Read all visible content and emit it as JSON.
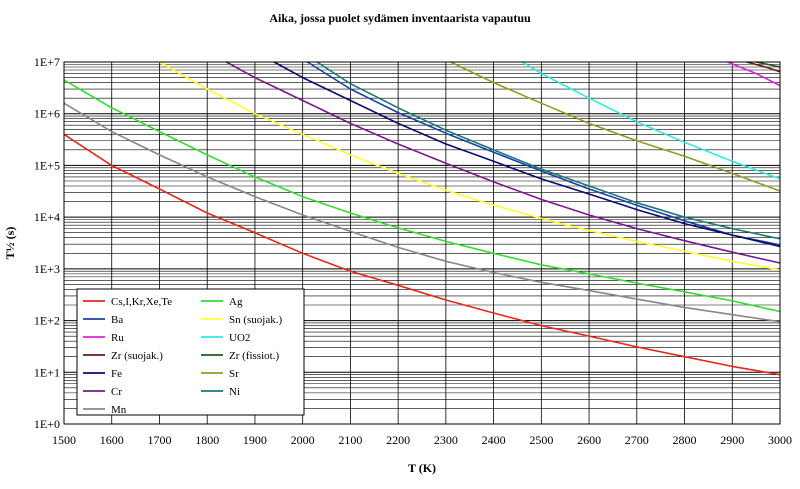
{
  "chart_data": {
    "type": "line",
    "title": "Aika, jossa puolet sydämen inventaarista vapautuu",
    "xlabel": "T (K)",
    "ylabel": "T½ (s)",
    "xlim": [
      1500,
      3000
    ],
    "ylim_log10": [
      0,
      7
    ],
    "y_scale": "log",
    "grid": true,
    "x_ticks": [
      "1500",
      "1600",
      "1700",
      "1800",
      "1900",
      "2000",
      "2100",
      "2200",
      "2300",
      "2400",
      "2500",
      "2600",
      "2700",
      "2800",
      "2900",
      "3000"
    ],
    "y_ticks": [
      "1E+0",
      "1E+1",
      "1E+2",
      "1E+3",
      "1E+4",
      "1E+5",
      "1E+6",
      "1E+7"
    ],
    "legend_position": "bottom-left",
    "series": [
      {
        "name": "Cs,I,Kr,Xe,Te",
        "color": "#e8261e",
        "x": [
          1500,
          1600,
          1700,
          1800,
          1900,
          2000,
          2100,
          2200,
          2300,
          2400,
          2500,
          2600,
          2700,
          2800,
          2900,
          3000
        ],
        "y": [
          400000,
          100000,
          35000,
          12000,
          5000,
          2000,
          900,
          480,
          250,
          140,
          80,
          50,
          31,
          20,
          13,
          9
        ]
      },
      {
        "name": "Ag",
        "color": "#33dd33",
        "x": [
          1500,
          1600,
          1700,
          1800,
          1900,
          2000,
          2100,
          2200,
          2300,
          2400,
          2500,
          2600,
          2700,
          2800,
          2900,
          3000
        ],
        "y": [
          4500000,
          1300000,
          450000,
          160000,
          60000,
          25000,
          12000,
          6200,
          3400,
          2000,
          1200,
          800,
          530,
          360,
          240,
          150
        ]
      },
      {
        "name": "Ba",
        "color": "#1f3fa8",
        "x": [
          2010,
          2100,
          2200,
          2300,
          2400,
          2500,
          2600,
          2700,
          2800,
          2900,
          3000
        ],
        "y": [
          10000000,
          3000000,
          1050000,
          420000,
          180000,
          78000,
          35000,
          17000,
          8500,
          4500,
          2900
        ]
      },
      {
        "name": "Sn (suojak.)",
        "color": "#ffff33",
        "x": [
          1700,
          1800,
          1900,
          2000,
          2100,
          2200,
          2300,
          2400,
          2500,
          2600,
          2700,
          2800,
          2900,
          3000
        ],
        "y": [
          10000000,
          3000000,
          1000000,
          400000,
          160000,
          70000,
          33000,
          17000,
          9500,
          5500,
          3400,
          2200,
          1400,
          950
        ]
      },
      {
        "name": "Ru",
        "color": "#e020e0",
        "x": [
          2890,
          2950,
          3000
        ],
        "y": [
          10000000,
          6000000,
          3500000
        ]
      },
      {
        "name": "UO2",
        "color": "#33e8e8",
        "x": [
          2460,
          2500,
          2600,
          2700,
          2800,
          2900,
          3000
        ],
        "y": [
          10000000,
          6000000,
          2000000,
          700000,
          280000,
          120000,
          55000
        ]
      },
      {
        "name": "Zr (suojak.)",
        "color": "#6b1a1a",
        "x": [
          2930,
          2970,
          3000
        ],
        "y": [
          10000000,
          8000000,
          6500000
        ]
      },
      {
        "name": "Zr (fissiot.)",
        "color": "#1e5a1e",
        "x": [
          2950,
          3000
        ],
        "y": [
          10000000,
          8000000
        ]
      },
      {
        "name": "Fe",
        "color": "#0a0a70",
        "x": [
          1940,
          2000,
          2100,
          2200,
          2300,
          2400,
          2500,
          2600,
          2700,
          2800,
          2900,
          3000
        ],
        "y": [
          10000000,
          5000000,
          1800000,
          650000,
          260000,
          120000,
          55000,
          28000,
          14000,
          7500,
          4500,
          2700
        ]
      },
      {
        "name": "Sr",
        "color": "#999922",
        "x": [
          2310,
          2400,
          2500,
          2600,
          2700,
          2800,
          2900,
          3000
        ],
        "y": [
          10000000,
          4000000,
          1600000,
          650000,
          300000,
          150000,
          70000,
          32000
        ]
      },
      {
        "name": "Cr",
        "color": "#7a1a8a",
        "x": [
          1840,
          1900,
          2000,
          2100,
          2200,
          2300,
          2400,
          2500,
          2600,
          2700,
          2800,
          2900,
          3000
        ],
        "y": [
          10000000,
          5000000,
          1800000,
          650000,
          260000,
          110000,
          48000,
          22000,
          11000,
          6000,
          3500,
          2100,
          1300
        ]
      },
      {
        "name": "Ni",
        "color": "#1a7878",
        "x": [
          2030,
          2100,
          2200,
          2300,
          2400,
          2500,
          2600,
          2700,
          2800,
          2900,
          3000
        ],
        "y": [
          10000000,
          3800000,
          1300000,
          480000,
          200000,
          85000,
          40000,
          19000,
          10000,
          6000,
          3800
        ]
      },
      {
        "name": "Mn",
        "color": "#888888",
        "x": [
          1500,
          1600,
          1700,
          1800,
          1900,
          2000,
          2100,
          2200,
          2300,
          2400,
          2500,
          2600,
          2700,
          2800,
          2900,
          3000
        ],
        "y": [
          1600000,
          450000,
          160000,
          60000,
          25000,
          11000,
          5300,
          2600,
          1400,
          850,
          550,
          380,
          260,
          180,
          130,
          95
        ]
      }
    ]
  }
}
